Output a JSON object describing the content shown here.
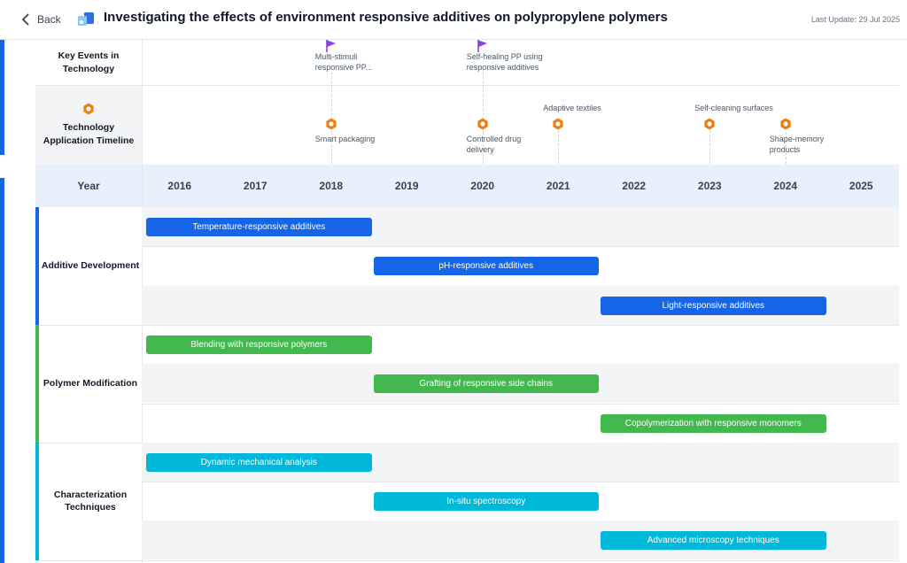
{
  "header": {
    "back_label": "Back",
    "title": "Investigating the effects of environment responsive additives on polypropylene polymers",
    "last_update": "Last Update: 29 Jul 2025"
  },
  "rows": {
    "key_events_label": "Key Events in Technology",
    "application_label": "Technology Application Timeline",
    "year_label": "Year"
  },
  "years": [
    "2016",
    "2017",
    "2018",
    "2019",
    "2020",
    "2021",
    "2022",
    "2023",
    "2024",
    "2025"
  ],
  "key_events": [
    {
      "year": 2018,
      "label": "Multi-stimuli responsive PP..."
    },
    {
      "year": 2020,
      "label": "Self-healing PP using responsive additives"
    }
  ],
  "applications": [
    {
      "year": 2018,
      "label": "Smart packaging",
      "position": "below"
    },
    {
      "year": 2020,
      "label": "Controlled drug delivery",
      "position": "below"
    },
    {
      "year": 2021,
      "label": "Adaptive textiles",
      "position": "above"
    },
    {
      "year": 2023,
      "label": "Self-cleaning surfaces",
      "position": "above"
    },
    {
      "year": 2024,
      "label": "Shape-memory products",
      "position": "below"
    }
  ],
  "colors": {
    "blue": "#1565e6",
    "green": "#43b84f",
    "cyan": "#00b8d9",
    "flag": "#8b3fe8",
    "hex": "#f07d12"
  },
  "groups": [
    {
      "label": "Additive Development",
      "color": "#1565e6",
      "bars": [
        {
          "label": "Temperature-responsive additives",
          "start": 2016,
          "end": 2019
        },
        {
          "label": "pH-responsive additives",
          "start": 2019,
          "end": 2022
        },
        {
          "label": "Light-responsive additives",
          "start": 2022,
          "end": 2025
        }
      ]
    },
    {
      "label": "Polymer Modification",
      "color": "#43b84f",
      "bars": [
        {
          "label": "Blending with responsive polymers",
          "start": 2016,
          "end": 2019
        },
        {
          "label": "Grafting of responsive side chains",
          "start": 2019,
          "end": 2022
        },
        {
          "label": "Copolymerization with responsive monomers",
          "start": 2022,
          "end": 2025
        }
      ]
    },
    {
      "label": "Characterization Techniques",
      "color": "#00b8d9",
      "bars": [
        {
          "label": "Dynamic mechanical analysis",
          "start": 2016,
          "end": 2019
        },
        {
          "label": "In-situ spectroscopy",
          "start": 2019,
          "end": 2022
        },
        {
          "label": "Advanced microscopy techniques",
          "start": 2022,
          "end": 2025
        }
      ]
    }
  ]
}
